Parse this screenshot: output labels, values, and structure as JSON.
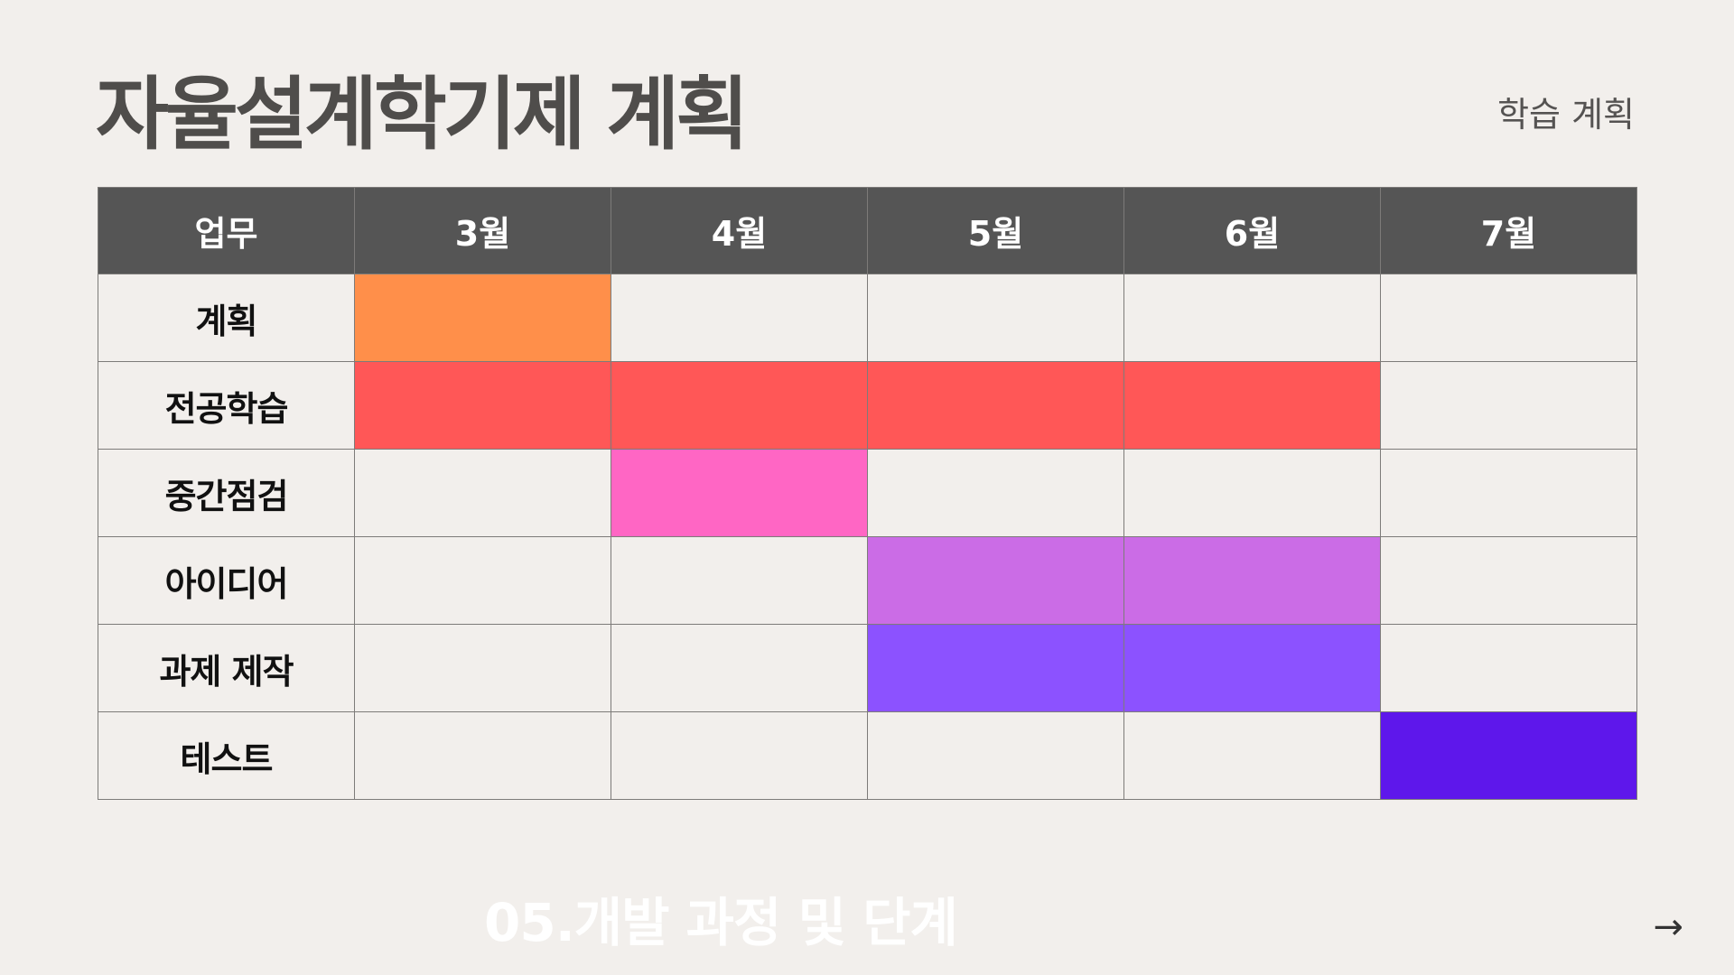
{
  "title": "자율설계학기제 계획",
  "subtitle": "학습 계획",
  "table": {
    "task_header": "업무",
    "months": [
      "3월",
      "4월",
      "5월",
      "6월",
      "7월"
    ],
    "rows": [
      {
        "task": "계획",
        "filled": [
          true,
          false,
          false,
          false,
          false
        ],
        "color": "#ff8f4a"
      },
      {
        "task": "전공학습",
        "filled": [
          true,
          true,
          true,
          true,
          false
        ],
        "color": "#ff5757"
      },
      {
        "task": "중간점검",
        "filled": [
          false,
          true,
          false,
          false,
          false
        ],
        "color": "#ff66c4"
      },
      {
        "task": "아이디어",
        "filled": [
          false,
          false,
          true,
          true,
          false
        ],
        "color": "#cb6ce6"
      },
      {
        "task": "과제 제작",
        "filled": [
          false,
          false,
          true,
          true,
          false
        ],
        "color": "#8c52ff"
      },
      {
        "task": "테스트",
        "filled": [
          false,
          false,
          false,
          false,
          true
        ],
        "color": "#5e17eb"
      }
    ]
  },
  "footer": {
    "section_title": "05.개발 과정 및 단계",
    "next_arrow": "→"
  },
  "colors": {
    "background": "#f2efec",
    "header_bg": "#555555",
    "title": "#4f4d4b"
  }
}
